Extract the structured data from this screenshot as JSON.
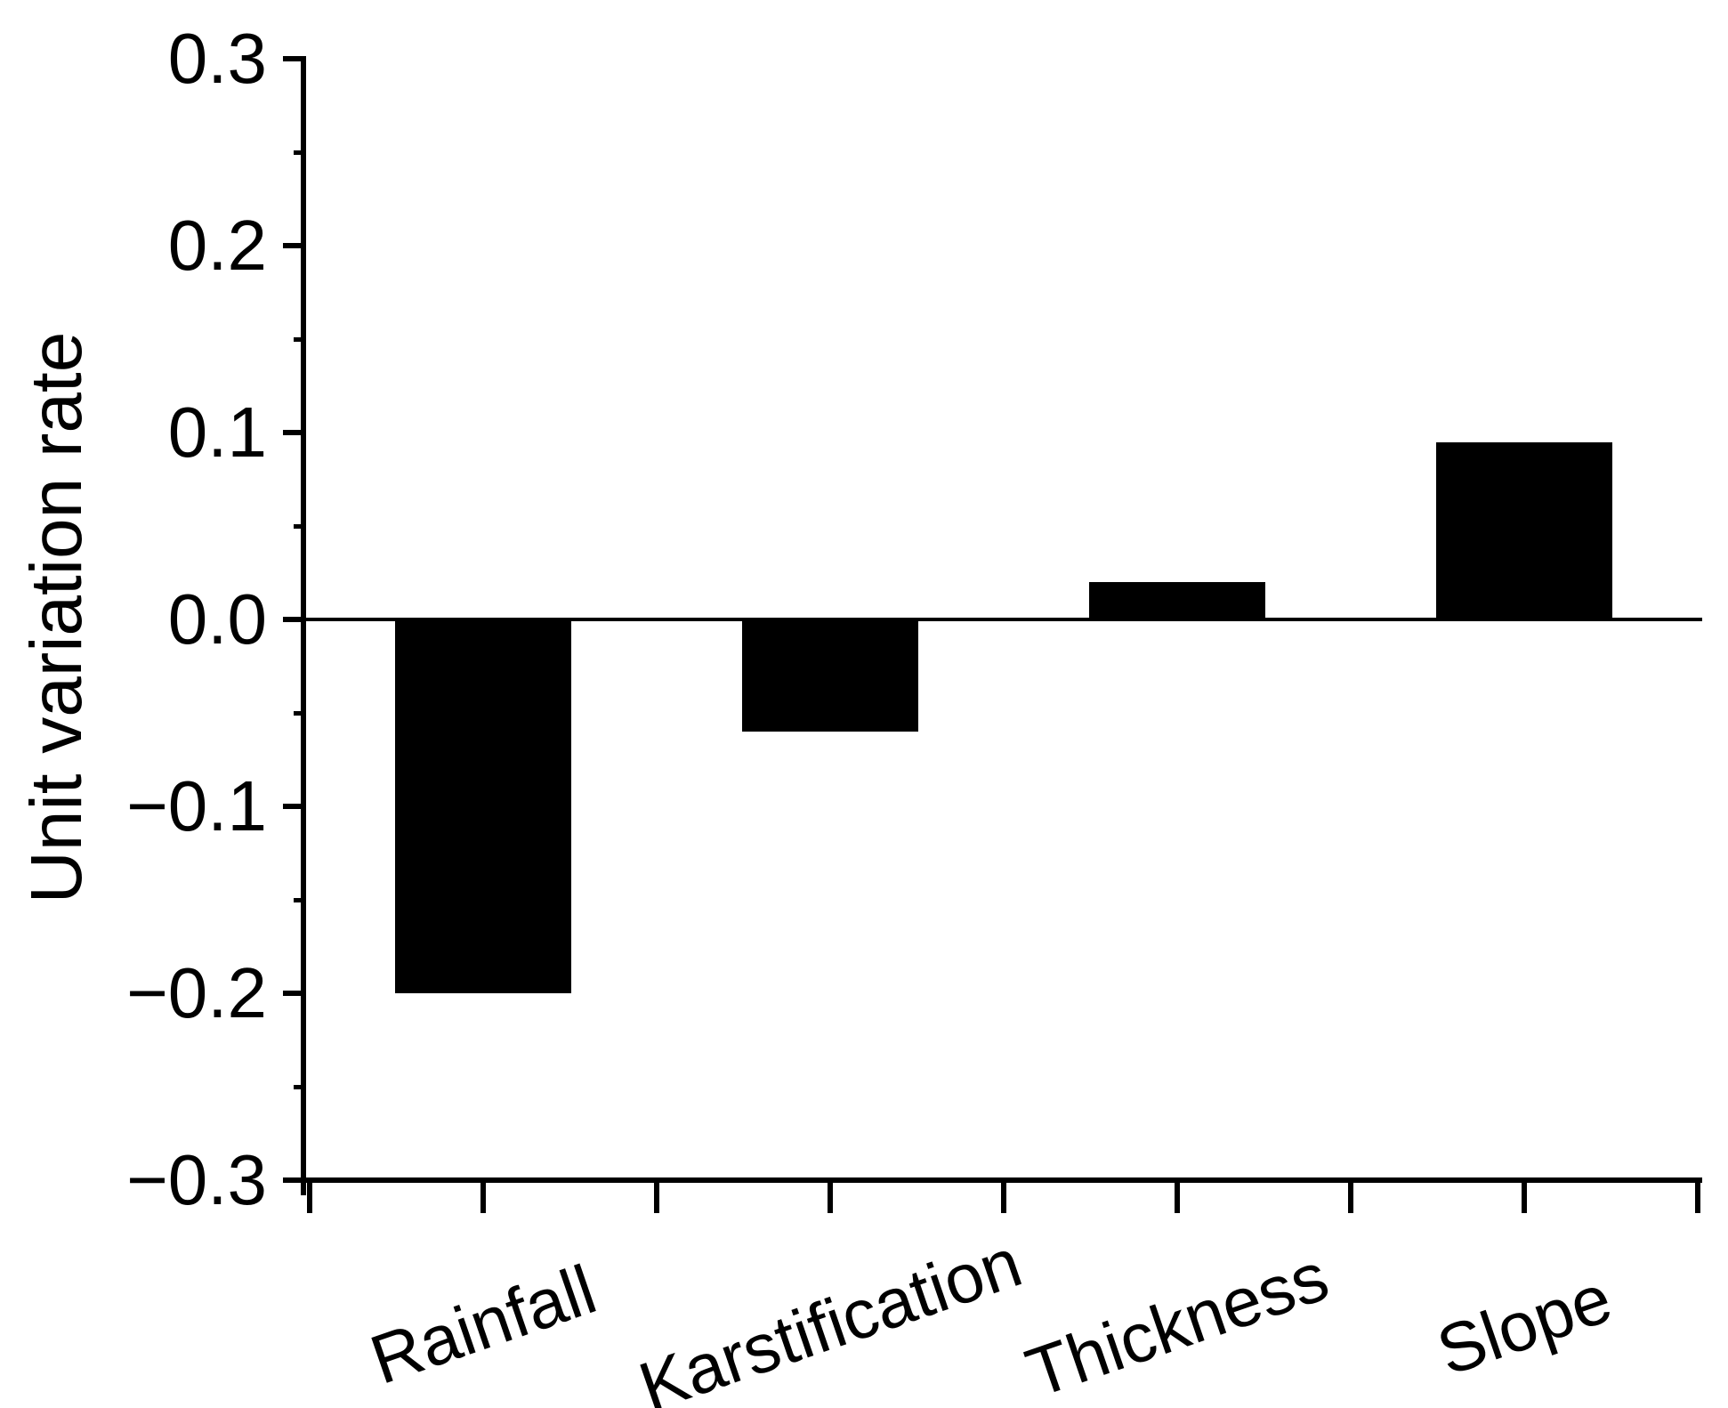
{
  "chart_data": {
    "type": "bar",
    "title": "",
    "ylabel": "Unit variation rate",
    "xlabel": "",
    "categories": [
      "Rainfall",
      "Karstification",
      "Thickness",
      "Slope"
    ],
    "values": [
      -0.2,
      -0.06,
      0.02,
      0.095
    ],
    "ylim": [
      -0.3,
      0.3
    ],
    "ytick_values": [
      0.3,
      0.2,
      0.1,
      0.0,
      -0.1,
      -0.2,
      -0.3
    ],
    "ytick_labels": [
      "0.3",
      "0.2",
      "0.1",
      "0.0",
      "−0.1",
      "−0.2",
      "−0.3"
    ],
    "yminor_tick_values": [
      0.25,
      0.15,
      0.05,
      -0.05,
      -0.15,
      -0.25
    ],
    "xtick_label_rotation_deg": -19,
    "bar_color": "#000000",
    "axis_color": "#000000",
    "background_color": "#ffffff",
    "grid": false,
    "legend": null,
    "zero_line": true
  }
}
